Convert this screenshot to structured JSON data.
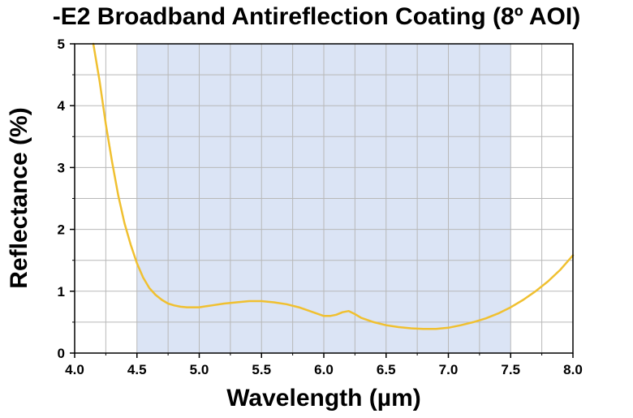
{
  "chart_data": {
    "type": "line",
    "title": "-E2 Broadband Antireflection Coating (8º AOI)",
    "xlabel": "Wavelength (µm)",
    "ylabel": "Reflectance (%)",
    "xlim": [
      4.0,
      8.0
    ],
    "ylim": [
      0,
      5
    ],
    "xticks": [
      "4.0",
      "4.5",
      "5.0",
      "5.5",
      "6.0",
      "6.5",
      "7.0",
      "7.5",
      "8.0"
    ],
    "yticks": [
      "0",
      "1",
      "2",
      "3",
      "4",
      "5"
    ],
    "grid": true,
    "shaded_band": {
      "x_start": 4.5,
      "x_end": 7.5,
      "color": "#dbe4f5"
    },
    "series": [
      {
        "color": "#f0c030",
        "x": [
          4.15,
          4.2,
          4.25,
          4.3,
          4.35,
          4.4,
          4.45,
          4.5,
          4.55,
          4.6,
          4.65,
          4.7,
          4.75,
          4.8,
          4.85,
          4.9,
          5.0,
          5.1,
          5.2,
          5.3,
          5.4,
          5.5,
          5.6,
          5.7,
          5.8,
          5.9,
          6.0,
          6.05,
          6.1,
          6.15,
          6.2,
          6.25,
          6.3,
          6.4,
          6.5,
          6.6,
          6.7,
          6.8,
          6.9,
          7.0,
          7.1,
          7.2,
          7.3,
          7.4,
          7.5,
          7.6,
          7.7,
          7.8,
          7.9,
          8.0
        ],
        "y": [
          5.0,
          4.4,
          3.7,
          3.1,
          2.55,
          2.1,
          1.75,
          1.45,
          1.22,
          1.05,
          0.94,
          0.86,
          0.8,
          0.77,
          0.75,
          0.74,
          0.74,
          0.77,
          0.8,
          0.82,
          0.84,
          0.84,
          0.82,
          0.79,
          0.74,
          0.67,
          0.6,
          0.6,
          0.62,
          0.66,
          0.68,
          0.63,
          0.57,
          0.5,
          0.45,
          0.42,
          0.4,
          0.39,
          0.39,
          0.41,
          0.45,
          0.5,
          0.56,
          0.64,
          0.74,
          0.86,
          1.0,
          1.16,
          1.35,
          1.58
        ]
      }
    ]
  }
}
